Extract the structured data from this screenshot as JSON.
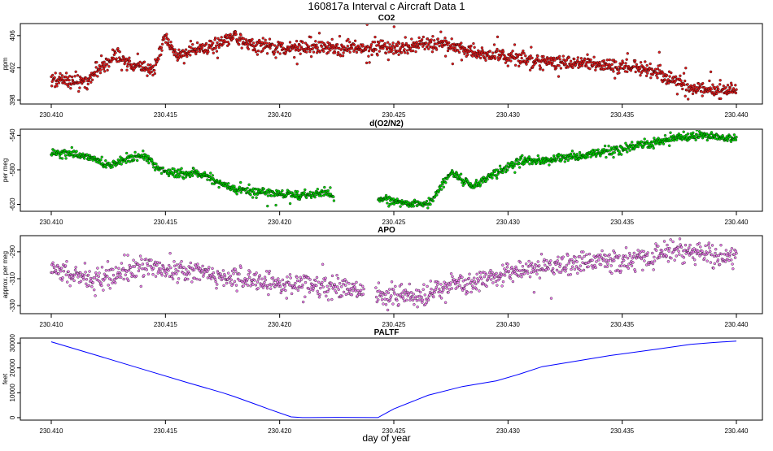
{
  "figure": {
    "title": "160817a   Interval c Aircraft Data 1",
    "xlabel": "day of year"
  },
  "chart_data": [
    {
      "type": "scatter",
      "title": "CO2",
      "ylabel": "ppm",
      "xlim": [
        230.41,
        230.44
      ],
      "ylim": [
        397.5,
        407.5
      ],
      "xticks": [
        "230.410",
        "230.415",
        "230.420",
        "230.425",
        "230.430",
        "230.435",
        "230.440"
      ],
      "yticks": [
        "398",
        "402",
        "406"
      ],
      "color": "#e41a1c",
      "point_count": 1450,
      "noise": 0.45,
      "trend": [
        [
          230.41,
          400.5
        ],
        [
          230.4115,
          400.3
        ],
        [
          230.412,
          401.6
        ],
        [
          230.4128,
          403.6
        ],
        [
          230.4135,
          402.4
        ],
        [
          230.4145,
          401.8
        ],
        [
          230.415,
          405.8
        ],
        [
          230.4155,
          403.6
        ],
        [
          230.417,
          404.6
        ],
        [
          230.418,
          405.8
        ],
        [
          230.419,
          404.6
        ],
        [
          230.421,
          404.5
        ],
        [
          230.425,
          404.5
        ],
        [
          230.427,
          405.1
        ],
        [
          230.429,
          403.6
        ],
        [
          230.431,
          403.0
        ],
        [
          230.433,
          402.6
        ],
        [
          230.436,
          401.9
        ],
        [
          230.437,
          400.8
        ],
        [
          230.438,
          399.4
        ],
        [
          230.44,
          399.2
        ]
      ]
    },
    {
      "type": "scatter",
      "title": "d(O2/N2)",
      "ylabel": "per meg",
      "xlim": [
        230.41,
        230.44
      ],
      "ylim": [
        -628,
        -533
      ],
      "xticks": [
        "230.410",
        "230.415",
        "230.420",
        "230.425",
        "230.430",
        "230.435",
        "230.440"
      ],
      "yticks": [
        "-540",
        "-580",
        "-620"
      ],
      "color": "#00d600",
      "point_count": 1300,
      "noise": 2.5,
      "gaps": [
        [
          230.4224,
          230.4243
        ]
      ],
      "trend": [
        [
          230.41,
          -560
        ],
        [
          230.4112,
          -563
        ],
        [
          230.412,
          -568
        ],
        [
          230.4125,
          -576
        ],
        [
          230.413,
          -571
        ],
        [
          230.414,
          -563
        ],
        [
          230.415,
          -583
        ],
        [
          230.4165,
          -584
        ],
        [
          230.418,
          -603
        ],
        [
          230.4195,
          -606
        ],
        [
          230.421,
          -610
        ],
        [
          230.422,
          -605
        ],
        [
          230.4225,
          -613
        ],
        [
          230.4235,
          -616
        ],
        [
          230.4245,
          -614
        ],
        [
          230.4255,
          -618
        ],
        [
          230.4265,
          -620
        ],
        [
          230.4275,
          -584
        ],
        [
          230.4285,
          -600
        ],
        [
          230.4295,
          -582
        ],
        [
          230.4305,
          -570
        ],
        [
          230.432,
          -569
        ],
        [
          230.4335,
          -562
        ],
        [
          230.4355,
          -553
        ],
        [
          230.437,
          -545
        ],
        [
          230.4385,
          -540
        ],
        [
          230.44,
          -543
        ]
      ]
    },
    {
      "type": "scatter",
      "title": "APO",
      "ylabel": "approx. per meg",
      "xlim": [
        230.41,
        230.44
      ],
      "ylim": [
        -336,
        -278
      ],
      "xticks": [
        "230.410",
        "230.415",
        "230.420",
        "230.425",
        "230.430",
        "230.435",
        "230.440"
      ],
      "yticks": [
        "-290",
        "-310",
        "-330"
      ],
      "color": "#ee82ee",
      "point_count": 1200,
      "noise": 4,
      "gaps": [
        [
          230.4237,
          230.4242
        ]
      ],
      "trend": [
        [
          230.41,
          -304
        ],
        [
          230.412,
          -310
        ],
        [
          230.413,
          -307
        ],
        [
          230.414,
          -301
        ],
        [
          230.416,
          -304
        ],
        [
          230.418,
          -309
        ],
        [
          230.42,
          -314
        ],
        [
          230.4225,
          -316
        ],
        [
          230.4235,
          -319
        ],
        [
          230.4245,
          -324
        ],
        [
          230.4265,
          -322
        ],
        [
          230.4275,
          -314
        ],
        [
          230.4295,
          -308
        ],
        [
          230.4315,
          -301
        ],
        [
          230.4335,
          -297
        ],
        [
          230.435,
          -297
        ],
        [
          230.437,
          -291
        ],
        [
          230.4385,
          -291
        ],
        [
          230.44,
          -295
        ]
      ]
    },
    {
      "type": "line",
      "title": "PALTF",
      "ylabel": "feet",
      "xlim": [
        230.41,
        230.44
      ],
      "ylim": [
        -1000,
        32000
      ],
      "xticks": [
        "230.410",
        "230.415",
        "230.420",
        "230.425",
        "230.430",
        "230.435",
        "230.440"
      ],
      "yticks": [
        "0",
        "10000",
        "20000",
        "30000"
      ],
      "color": "#0000ff",
      "x": [
        230.41,
        230.412,
        230.414,
        230.416,
        230.4175,
        230.418,
        230.419,
        230.4195,
        230.4205,
        230.421,
        230.4225,
        230.4243,
        230.425,
        230.4265,
        230.428,
        230.4295,
        230.4305,
        230.4315,
        230.4325,
        230.4345,
        230.4365,
        230.438,
        230.439,
        230.44
      ],
      "y": [
        30500,
        25000,
        19500,
        14000,
        10000,
        8500,
        5200,
        3500,
        300,
        0,
        100,
        0,
        3500,
        9000,
        12500,
        14800,
        17500,
        20500,
        22000,
        25000,
        27500,
        29500,
        30200,
        30800
      ]
    }
  ]
}
